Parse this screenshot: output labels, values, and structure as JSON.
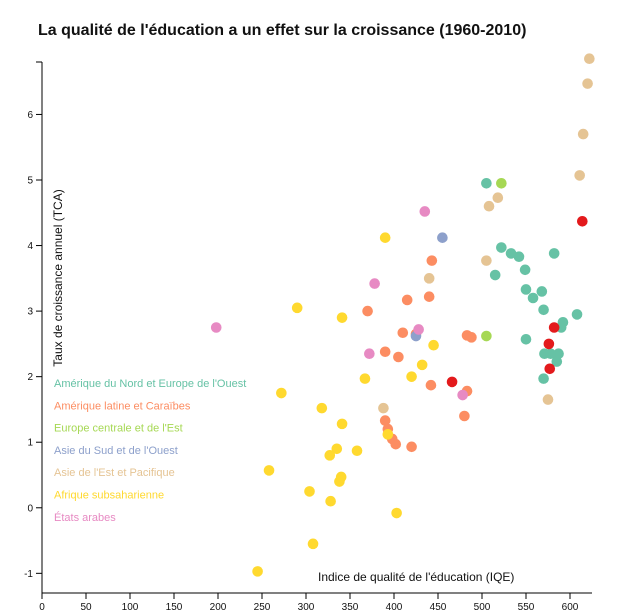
{
  "chart_data": {
    "type": "scatter",
    "title": "La qualité de l'éducation a un effet sur la croissance (1960-2010)",
    "xlabel": "Indice de qualité de l'éducation (IQE)",
    "ylabel": "Taux de croissance annuel (TCA)",
    "xlim": [
      0,
      625
    ],
    "ylim": [
      -1.3,
      6.8
    ],
    "x_ticks": [
      0,
      50,
      100,
      150,
      200,
      250,
      300,
      350,
      400,
      450,
      500,
      550,
      600
    ],
    "y_ticks": [
      -1,
      0,
      1,
      2,
      3,
      4,
      5,
      6
    ],
    "grid": false,
    "legend_position": "left",
    "series": [
      {
        "name": "Amérique du Nord et Europe de l'Ouest",
        "color": "#66c2a5",
        "points": [
          [
            505,
            4.95
          ],
          [
            522,
            3.97
          ],
          [
            533,
            3.88
          ],
          [
            542,
            3.83
          ],
          [
            549,
            3.63
          ],
          [
            558,
            3.2
          ],
          [
            568,
            3.3
          ],
          [
            570,
            3.02
          ],
          [
            582,
            3.88
          ],
          [
            587,
            2.35
          ],
          [
            590,
            2.75
          ],
          [
            592,
            2.83
          ],
          [
            608,
            2.95
          ],
          [
            550,
            3.33
          ],
          [
            515,
            3.55
          ],
          [
            550,
            2.57
          ],
          [
            571,
            2.35
          ],
          [
            578,
            2.35
          ],
          [
            585,
            2.23
          ],
          [
            570,
            1.97
          ]
        ]
      },
      {
        "name": "Amérique latine et Caraïbes",
        "color": "#fc8d62",
        "points": [
          [
            370,
            3.0
          ],
          [
            390,
            2.38
          ],
          [
            405,
            2.3
          ],
          [
            410,
            2.67
          ],
          [
            415,
            3.17
          ],
          [
            425,
            2.65
          ],
          [
            440,
            3.22
          ],
          [
            443,
            3.77
          ],
          [
            442,
            1.87
          ],
          [
            480,
            1.4
          ],
          [
            483,
            1.78
          ],
          [
            483,
            2.63
          ],
          [
            488,
            2.6
          ],
          [
            390,
            1.33
          ],
          [
            393,
            1.2
          ],
          [
            398,
            1.05
          ],
          [
            402,
            0.97
          ],
          [
            420,
            0.93
          ]
        ]
      },
      {
        "name": "Europe centrale et de l'Est",
        "color": "#a6d854",
        "points": [
          [
            522,
            4.95
          ],
          [
            505,
            2.62
          ]
        ]
      },
      {
        "name": "Asie du Sud et de l'Ouest",
        "color": "#8da0cb",
        "points": [
          [
            455,
            4.12
          ],
          [
            425,
            2.62
          ]
        ]
      },
      {
        "name": "Asie de l'Est et Pacifique",
        "color": "#e5c494",
        "points": [
          [
            622,
            6.85
          ],
          [
            620,
            6.47
          ],
          [
            615,
            5.7
          ],
          [
            611,
            5.07
          ],
          [
            518,
            4.73
          ],
          [
            508,
            4.6
          ],
          [
            505,
            3.77
          ],
          [
            440,
            3.5
          ],
          [
            388,
            1.52
          ],
          [
            575,
            1.65
          ]
        ]
      },
      {
        "name": "Afrique subsaharienne",
        "color": "#ffd92f",
        "points": [
          [
            245,
            -0.97
          ],
          [
            258,
            0.57
          ],
          [
            272,
            1.75
          ],
          [
            290,
            3.05
          ],
          [
            304,
            0.25
          ],
          [
            308,
            -0.55
          ],
          [
            318,
            1.52
          ],
          [
            327,
            0.8
          ],
          [
            328,
            0.1
          ],
          [
            335,
            0.9
          ],
          [
            338,
            0.4
          ],
          [
            340,
            0.47
          ],
          [
            341,
            1.28
          ],
          [
            341,
            2.9
          ],
          [
            358,
            0.87
          ],
          [
            367,
            1.97
          ],
          [
            390,
            4.12
          ],
          [
            393,
            1.12
          ],
          [
            403,
            -0.08
          ],
          [
            420,
            2.0
          ],
          [
            432,
            2.18
          ],
          [
            445,
            2.48
          ]
        ]
      },
      {
        "name": "États arabes",
        "color": "#e78ac3",
        "points": [
          [
            198,
            2.75
          ],
          [
            372,
            2.35
          ],
          [
            378,
            3.42
          ],
          [
            428,
            2.72
          ],
          [
            435,
            4.52
          ],
          [
            478,
            1.72
          ]
        ]
      },
      {
        "name": "",
        "color": "#e31a1c",
        "points": [
          [
            614,
            4.37
          ],
          [
            582,
            2.75
          ],
          [
            576,
            2.5
          ],
          [
            577,
            2.12
          ],
          [
            466,
            1.92
          ]
        ]
      }
    ]
  }
}
